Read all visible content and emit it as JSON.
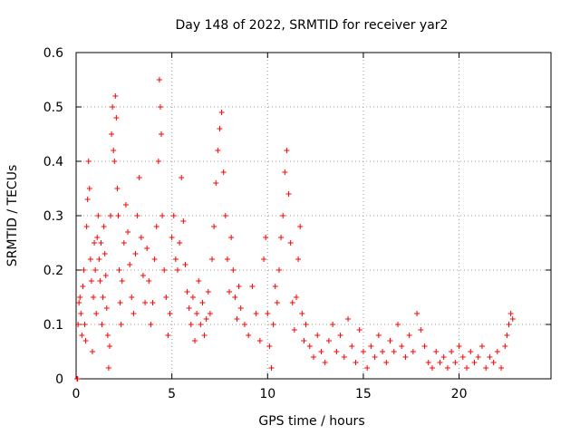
{
  "chart_data": {
    "type": "scatter",
    "title": "Day 148 of 2022, SRMTID for receiver yar2",
    "xlabel": "GPS time / hours",
    "ylabel": "SRMTID / TECUs",
    "xlim": [
      0,
      24.8
    ],
    "ylim": [
      0,
      0.6
    ],
    "grid": true,
    "marker": "plus",
    "color": "#ff0000",
    "x_ticks": [
      {
        "value": 0,
        "label": "0"
      },
      {
        "value": 5,
        "label": "5"
      },
      {
        "value": 10,
        "label": "10"
      },
      {
        "value": 15,
        "label": "15"
      },
      {
        "value": 20,
        "label": "20"
      }
    ],
    "y_ticks": [
      {
        "value": 0,
        "label": "0"
      },
      {
        "value": 0.1,
        "label": "0.1"
      },
      {
        "value": 0.2,
        "label": "0.2"
      },
      {
        "value": 0.3,
        "label": "0.3"
      },
      {
        "value": 0.4,
        "label": "0.4"
      },
      {
        "value": 0.5,
        "label": "0.5"
      },
      {
        "value": 0.6,
        "label": "0.6"
      }
    ],
    "series": [
      {
        "name": "SRMTID",
        "points": [
          [
            0.05,
            0.0
          ],
          [
            0.08,
            0.0
          ],
          [
            0.1,
            0.1
          ],
          [
            0.15,
            0.14
          ],
          [
            0.2,
            0.15
          ],
          [
            0.25,
            0.12
          ],
          [
            0.3,
            0.08
          ],
          [
            0.35,
            0.17
          ],
          [
            0.4,
            0.2
          ],
          [
            0.45,
            0.1
          ],
          [
            0.5,
            0.07
          ],
          [
            0.55,
            0.28
          ],
          [
            0.6,
            0.33
          ],
          [
            0.65,
            0.4
          ],
          [
            0.7,
            0.35
          ],
          [
            0.75,
            0.22
          ],
          [
            0.8,
            0.18
          ],
          [
            0.85,
            0.05
          ],
          [
            0.9,
            0.15
          ],
          [
            0.95,
            0.25
          ],
          [
            1.0,
            0.2
          ],
          [
            1.05,
            0.12
          ],
          [
            1.1,
            0.26
          ],
          [
            1.15,
            0.3
          ],
          [
            1.2,
            0.22
          ],
          [
            1.25,
            0.18
          ],
          [
            1.3,
            0.25
          ],
          [
            1.35,
            0.1
          ],
          [
            1.4,
            0.15
          ],
          [
            1.45,
            0.28
          ],
          [
            1.5,
            0.23
          ],
          [
            1.55,
            0.19
          ],
          [
            1.6,
            0.13
          ],
          [
            1.65,
            0.08
          ],
          [
            1.7,
            0.02
          ],
          [
            1.75,
            0.06
          ],
          [
            1.8,
            0.3
          ],
          [
            1.85,
            0.45
          ],
          [
            1.9,
            0.5
          ],
          [
            1.95,
            0.42
          ],
          [
            2.0,
            0.4
          ],
          [
            2.05,
            0.52
          ],
          [
            2.1,
            0.48
          ],
          [
            2.15,
            0.35
          ],
          [
            2.2,
            0.3
          ],
          [
            2.25,
            0.2
          ],
          [
            2.3,
            0.14
          ],
          [
            2.35,
            0.1
          ],
          [
            2.4,
            0.18
          ],
          [
            2.5,
            0.25
          ],
          [
            2.6,
            0.32
          ],
          [
            2.7,
            0.27
          ],
          [
            2.8,
            0.21
          ],
          [
            2.9,
            0.15
          ],
          [
            3.0,
            0.12
          ],
          [
            3.1,
            0.23
          ],
          [
            3.2,
            0.3
          ],
          [
            3.3,
            0.37
          ],
          [
            3.4,
            0.26
          ],
          [
            3.5,
            0.19
          ],
          [
            3.6,
            0.14
          ],
          [
            3.7,
            0.24
          ],
          [
            3.8,
            0.18
          ],
          [
            3.9,
            0.1
          ],
          [
            4.0,
            0.14
          ],
          [
            4.1,
            0.22
          ],
          [
            4.2,
            0.28
          ],
          [
            4.3,
            0.4
          ],
          [
            4.35,
            0.55
          ],
          [
            4.4,
            0.5
          ],
          [
            4.45,
            0.45
          ],
          [
            4.5,
            0.3
          ],
          [
            4.6,
            0.2
          ],
          [
            4.7,
            0.15
          ],
          [
            4.8,
            0.08
          ],
          [
            4.9,
            0.12
          ],
          [
            5.0,
            0.26
          ],
          [
            5.1,
            0.3
          ],
          [
            5.2,
            0.22
          ],
          [
            5.3,
            0.2
          ],
          [
            5.4,
            0.25
          ],
          [
            5.5,
            0.37
          ],
          [
            5.6,
            0.29
          ],
          [
            5.7,
            0.21
          ],
          [
            5.8,
            0.16
          ],
          [
            5.9,
            0.13
          ],
          [
            6.0,
            0.1
          ],
          [
            6.1,
            0.15
          ],
          [
            6.2,
            0.07
          ],
          [
            6.3,
            0.12
          ],
          [
            6.4,
            0.18
          ],
          [
            6.5,
            0.1
          ],
          [
            6.6,
            0.14
          ],
          [
            6.7,
            0.08
          ],
          [
            6.8,
            0.11
          ],
          [
            6.9,
            0.16
          ],
          [
            7.0,
            0.12
          ],
          [
            7.1,
            0.22
          ],
          [
            7.2,
            0.28
          ],
          [
            7.3,
            0.36
          ],
          [
            7.4,
            0.42
          ],
          [
            7.5,
            0.46
          ],
          [
            7.6,
            0.49
          ],
          [
            7.7,
            0.38
          ],
          [
            7.8,
            0.3
          ],
          [
            7.9,
            0.22
          ],
          [
            8.0,
            0.16
          ],
          [
            8.1,
            0.26
          ],
          [
            8.2,
            0.2
          ],
          [
            8.3,
            0.15
          ],
          [
            8.4,
            0.11
          ],
          [
            8.5,
            0.17
          ],
          [
            8.6,
            0.13
          ],
          [
            8.8,
            0.1
          ],
          [
            9.0,
            0.08
          ],
          [
            9.2,
            0.17
          ],
          [
            9.4,
            0.12
          ],
          [
            9.6,
            0.07
          ],
          [
            9.8,
            0.22
          ],
          [
            9.9,
            0.26
          ],
          [
            10.0,
            0.12
          ],
          [
            10.1,
            0.06
          ],
          [
            10.2,
            0.02
          ],
          [
            10.3,
            0.1
          ],
          [
            10.4,
            0.17
          ],
          [
            10.5,
            0.14
          ],
          [
            10.6,
            0.2
          ],
          [
            10.7,
            0.26
          ],
          [
            10.8,
            0.3
          ],
          [
            10.9,
            0.38
          ],
          [
            11.0,
            0.42
          ],
          [
            11.1,
            0.34
          ],
          [
            11.2,
            0.25
          ],
          [
            11.3,
            0.14
          ],
          [
            11.4,
            0.09
          ],
          [
            11.5,
            0.15
          ],
          [
            11.6,
            0.22
          ],
          [
            11.7,
            0.28
          ],
          [
            11.8,
            0.12
          ],
          [
            11.9,
            0.07
          ],
          [
            12.0,
            0.1
          ],
          [
            12.2,
            0.06
          ],
          [
            12.4,
            0.04
          ],
          [
            12.6,
            0.08
          ],
          [
            12.8,
            0.05
          ],
          [
            13.0,
            0.03
          ],
          [
            13.2,
            0.07
          ],
          [
            13.4,
            0.1
          ],
          [
            13.6,
            0.05
          ],
          [
            13.8,
            0.08
          ],
          [
            14.0,
            0.04
          ],
          [
            14.2,
            0.11
          ],
          [
            14.4,
            0.06
          ],
          [
            14.6,
            0.03
          ],
          [
            14.8,
            0.09
          ],
          [
            15.0,
            0.05
          ],
          [
            15.2,
            0.02
          ],
          [
            15.4,
            0.06
          ],
          [
            15.6,
            0.04
          ],
          [
            15.8,
            0.08
          ],
          [
            16.0,
            0.05
          ],
          [
            16.2,
            0.03
          ],
          [
            16.4,
            0.07
          ],
          [
            16.6,
            0.05
          ],
          [
            16.8,
            0.1
          ],
          [
            17.0,
            0.06
          ],
          [
            17.2,
            0.04
          ],
          [
            17.4,
            0.08
          ],
          [
            17.6,
            0.05
          ],
          [
            17.8,
            0.12
          ],
          [
            18.0,
            0.09
          ],
          [
            18.2,
            0.06
          ],
          [
            18.4,
            0.03
          ],
          [
            18.6,
            0.02
          ],
          [
            18.8,
            0.05
          ],
          [
            19.0,
            0.03
          ],
          [
            19.2,
            0.04
          ],
          [
            19.4,
            0.02
          ],
          [
            19.6,
            0.05
          ],
          [
            19.8,
            0.03
          ],
          [
            20.0,
            0.06
          ],
          [
            20.2,
            0.04
          ],
          [
            20.4,
            0.02
          ],
          [
            20.6,
            0.05
          ],
          [
            20.8,
            0.03
          ],
          [
            21.0,
            0.04
          ],
          [
            21.2,
            0.06
          ],
          [
            21.4,
            0.02
          ],
          [
            21.6,
            0.04
          ],
          [
            21.8,
            0.03
          ],
          [
            22.0,
            0.05
          ],
          [
            22.2,
            0.02
          ],
          [
            22.4,
            0.06
          ],
          [
            22.5,
            0.08
          ],
          [
            22.6,
            0.1
          ],
          [
            22.7,
            0.12
          ],
          [
            22.8,
            0.11
          ]
        ]
      }
    ]
  }
}
